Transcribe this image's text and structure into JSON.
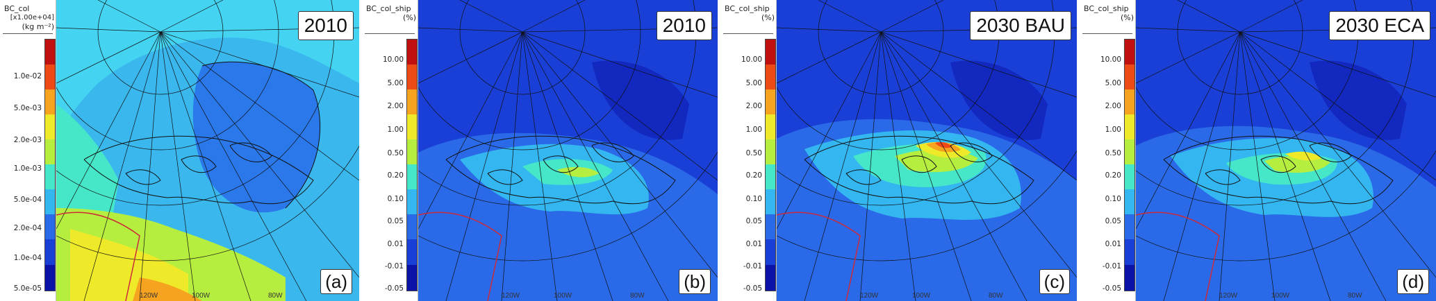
{
  "panels": [
    {
      "id": "a",
      "legend_title": [
        "BC_col",
        "[x1.00e+04]",
        "(kg m⁻²)"
      ],
      "ticks": [
        "1.0e-02",
        "5.0e-03",
        "2.0e-03",
        "1.0e-03",
        "5.0e-04",
        "2.0e-04",
        "1.0e-04",
        "5.0e-05"
      ],
      "label": "2010",
      "letter": "(a)",
      "lon_labels": [
        "120W",
        "100W",
        "80W"
      ],
      "palette": [
        "#0a12a8",
        "#1a3fd6",
        "#2a6ae8",
        "#34b6f0",
        "#46e6c8",
        "#b6ee40",
        "#eeea2a",
        "#f6a420",
        "#ee4a18",
        "#c01010"
      ]
    },
    {
      "id": "b",
      "legend_title": [
        "BC_col_ship",
        "",
        "(%)"
      ],
      "ticks": [
        "10.00",
        "5.00",
        "2.00",
        "1.00",
        "0.50",
        "0.20",
        "0.10",
        "0.05",
        "0.01",
        "-0.01",
        "-0.05"
      ],
      "label": "2010",
      "letter": "(b)",
      "lon_labels": [
        "120W",
        "100W",
        "80W"
      ],
      "palette": [
        "#0a12a8",
        "#1a3fd6",
        "#2a6ae8",
        "#34b6f0",
        "#46e6c8",
        "#b6ee40",
        "#eeea2a",
        "#f6a420",
        "#ee4a18",
        "#c01010"
      ]
    },
    {
      "id": "c",
      "legend_title": [
        "BC_col_ship",
        "",
        "(%)"
      ],
      "ticks": [
        "10.00",
        "5.00",
        "2.00",
        "1.00",
        "0.50",
        "0.20",
        "0.10",
        "0.05",
        "0.01",
        "-0.01",
        "-0.05"
      ],
      "label": "2030 BAU",
      "letter": "(c)",
      "lon_labels": [
        "120W",
        "100W",
        "80W"
      ],
      "palette": [
        "#0a12a8",
        "#1a3fd6",
        "#2a6ae8",
        "#34b6f0",
        "#46e6c8",
        "#b6ee40",
        "#eeea2a",
        "#f6a420",
        "#ee4a18",
        "#c01010"
      ]
    },
    {
      "id": "d",
      "legend_title": [
        "BC_col_ship",
        "",
        "(%)"
      ],
      "ticks": [
        "10.00",
        "5.00",
        "2.00",
        "1.00",
        "0.50",
        "0.20",
        "0.10",
        "0.05",
        "0.01",
        "-0.01",
        "-0.05"
      ],
      "label": "2030 ECA",
      "letter": "(d)",
      "lon_labels": [
        "120W",
        "100W",
        "80W"
      ],
      "palette": [
        "#0a12a8",
        "#1a3fd6",
        "#2a6ae8",
        "#34b6f0",
        "#46e6c8",
        "#b6ee40",
        "#eeea2a",
        "#f6a420",
        "#ee4a18",
        "#c01010"
      ]
    }
  ]
}
